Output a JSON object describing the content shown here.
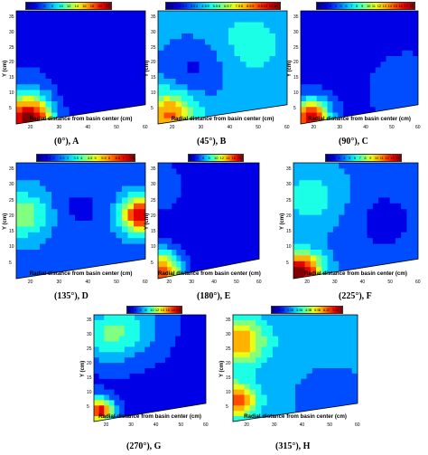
{
  "figure": {
    "x_axis_label": "Radial distance from basin center (cm)",
    "y_axis_label": "Y (cm)"
  },
  "chart_data": [
    {
      "type": "heatmap",
      "panel": "A",
      "caption": "(0°), A",
      "colorbar_ticks": [
        "2",
        "4",
        "6",
        "8",
        "10",
        "12",
        "14",
        "16",
        "18",
        "20",
        "22"
      ],
      "x_ticks": [
        20,
        30,
        40,
        50,
        60
      ],
      "y_ticks": [
        5,
        10,
        15,
        20,
        25,
        30,
        35
      ],
      "xlim": [
        15,
        60
      ],
      "ylim": [
        0,
        37
      ],
      "xlabel": "Radial distance from basin center (cm)",
      "ylabel": "Y (cm)"
    },
    {
      "type": "heatmap",
      "panel": "B",
      "caption": "(45°), B",
      "colorbar_ticks": [
        "1.5",
        "2",
        "2.5",
        "3",
        "3.5",
        "4",
        "4.5",
        "5",
        "5.5",
        "6",
        "6.5",
        "7",
        "7.5",
        "8",
        "8.5",
        "9",
        "9.5",
        "10",
        "10.5",
        "11"
      ],
      "x_ticks": [
        20,
        30,
        40,
        50,
        60
      ],
      "y_ticks": [
        5,
        10,
        15,
        20,
        25,
        30,
        35
      ],
      "xlim": [
        15,
        60
      ],
      "ylim": [
        0,
        37
      ],
      "xlabel": "Radial distance from basin center (cm)",
      "ylabel": "Y (cm)"
    },
    {
      "type": "heatmap",
      "panel": "C",
      "caption": "(90°), C",
      "colorbar_ticks": [
        "1",
        "2",
        "3",
        "4",
        "5",
        "6",
        "7",
        "8",
        "9",
        "10",
        "11",
        "12",
        "13",
        "14",
        "15",
        "16",
        "17",
        "18"
      ],
      "x_ticks": [
        20,
        30,
        40,
        50,
        60
      ],
      "y_ticks": [
        5,
        10,
        15,
        20,
        25,
        30,
        35
      ],
      "xlim": [
        15,
        60
      ],
      "ylim": [
        0,
        37
      ],
      "xlabel": "Radial distance from basin center (cm)",
      "ylabel": "Y (cm)"
    },
    {
      "type": "heatmap",
      "panel": "D",
      "caption": "(135°), D",
      "colorbar_ticks": [
        "1",
        "1.5",
        "2",
        "2.5",
        "3",
        "3.5",
        "4",
        "4.5",
        "5",
        "5.5",
        "6",
        "6.5",
        "7",
        "7.5"
      ],
      "x_ticks": [
        20,
        30,
        40,
        50,
        60
      ],
      "y_ticks": [
        5,
        10,
        15,
        20,
        25,
        30,
        35
      ],
      "xlim": [
        15,
        60
      ],
      "ylim": [
        0,
        37
      ],
      "xlabel": "Radial distance from basin center (cm)",
      "ylabel": "Y (cm)"
    },
    {
      "type": "heatmap",
      "panel": "E",
      "caption": "(180°), E",
      "colorbar_ticks": [
        "2",
        "4",
        "6",
        "8",
        "10",
        "12",
        "14",
        "16",
        "18"
      ],
      "x_ticks": [
        20,
        30,
        40,
        50,
        60
      ],
      "y_ticks": [
        5,
        10,
        15,
        20,
        25,
        30,
        35
      ],
      "xlim": [
        15,
        60
      ],
      "ylim": [
        0,
        37
      ],
      "xlabel": "Radial distance from basin center (cm)",
      "ylabel": "Y (cm)"
    },
    {
      "type": "heatmap",
      "panel": "F",
      "caption": "(225°), F",
      "colorbar_ticks": [
        "1",
        "2",
        "3",
        "4",
        "5",
        "6",
        "7",
        "8",
        "9",
        "10",
        "11",
        "12",
        "13",
        "14"
      ],
      "x_ticks": [
        20,
        30,
        40,
        50,
        60
      ],
      "y_ticks": [
        5,
        10,
        15,
        20,
        25,
        30,
        35
      ],
      "xlim": [
        15,
        60
      ],
      "ylim": [
        0,
        37
      ],
      "xlabel": "Radial distance from basin center (cm)",
      "ylabel": "Y (cm)"
    },
    {
      "type": "heatmap",
      "panel": "G",
      "caption": "(270°), G",
      "colorbar_ticks": [
        "2",
        "4",
        "6",
        "8",
        "10",
        "12",
        "14",
        "16",
        "18",
        "20"
      ],
      "x_ticks": [
        20,
        30,
        40,
        50,
        60
      ],
      "y_ticks": [
        5,
        10,
        15,
        20,
        25,
        30,
        35
      ],
      "xlim": [
        15,
        60
      ],
      "ylim": [
        0,
        37
      ],
      "xlabel": "Radial distance from basin center (cm)",
      "ylabel": "Y (cm)"
    },
    {
      "type": "heatmap",
      "panel": "H",
      "caption": "(315°), H",
      "colorbar_ticks": [
        "1",
        "1.5",
        "2",
        "2.5",
        "3",
        "3.5",
        "4",
        "4.5",
        "5",
        "5.5",
        "6",
        "6.5",
        "7",
        "7.5",
        "8"
      ],
      "x_ticks": [
        20,
        30,
        40,
        50,
        60
      ],
      "y_ticks": [
        5,
        10,
        15,
        20,
        25,
        30,
        35
      ],
      "xlim": [
        15,
        60
      ],
      "ylim": [
        0,
        37
      ],
      "xlabel": "Radial distance from basin center (cm)",
      "ylabel": "Y (cm)"
    }
  ]
}
